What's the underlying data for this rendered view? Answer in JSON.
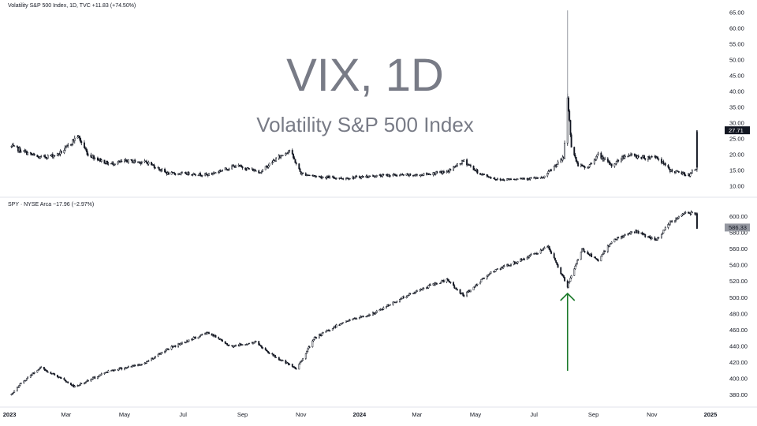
{
  "chart_data": [
    {
      "type": "line",
      "header": "Volatility S&P 500 Index, 1D, TVC  +11.83 (+74.50%)",
      "watermark_title": "VIX, 1D",
      "watermark_subtitle": "Volatility S&P 500 Index",
      "last_value": "27.71",
      "ylim": [
        8,
        66
      ],
      "y_ticks": [
        "65.00",
        "60.00",
        "55.00",
        "50.00",
        "45.00",
        "40.00",
        "35.00",
        "30.00",
        "25.00",
        "20.00",
        "15.00",
        "10.00"
      ],
      "y_tick_values": [
        65,
        60,
        55,
        50,
        45,
        40,
        35,
        30,
        25,
        20,
        15,
        10
      ],
      "x": [
        "2023-01-03",
        "2023-02-01",
        "2023-02-20",
        "2023-03-01",
        "2023-03-13",
        "2023-03-24",
        "2023-04-15",
        "2023-05-04",
        "2023-05-25",
        "2023-06-15",
        "2023-07-07",
        "2023-07-27",
        "2023-08-25",
        "2023-09-20",
        "2023-10-01",
        "2023-10-20",
        "2023-11-01",
        "2023-11-20",
        "2023-12-15",
        "2024-01-05",
        "2024-02-01",
        "2024-03-01",
        "2024-04-01",
        "2024-04-19",
        "2024-05-05",
        "2024-05-25",
        "2024-06-15",
        "2024-07-10",
        "2024-07-25",
        "2024-08-01",
        "2024-08-05",
        "2024-08-09",
        "2024-08-15",
        "2024-08-25",
        "2024-09-06",
        "2024-09-20",
        "2024-10-05",
        "2024-10-25",
        "2024-11-05",
        "2024-11-20",
        "2024-12-10",
        "2024-12-17",
        "2024-12-18"
      ],
      "values": [
        22.5,
        19,
        20,
        22,
        26,
        20,
        17,
        18,
        17.5,
        14,
        14,
        13.6,
        16.5,
        14.5,
        17.5,
        21.5,
        14,
        13,
        12.5,
        13,
        13.5,
        13.5,
        14.5,
        18,
        14,
        12,
        12.5,
        12.5,
        17,
        19,
        38,
        23,
        17,
        15.5,
        20,
        16.5,
        20,
        19,
        19.5,
        15,
        13.5,
        15.9,
        27.71
      ]
    },
    {
      "type": "line",
      "header": "SPY · NYSE Arca  −17.96 (−2.97%)",
      "last_value": "586.33",
      "ylim": [
        371,
        612
      ],
      "y_ticks": [
        "600.00",
        "580.00",
        "560.00",
        "540.00",
        "520.00",
        "500.00",
        "480.00",
        "460.00",
        "440.00",
        "420.00",
        "400.00",
        "380.00"
      ],
      "y_tick_values": [
        600,
        580,
        560,
        540,
        520,
        500,
        480,
        460,
        440,
        420,
        400,
        380
      ],
      "x": [
        "2023-01-03",
        "2023-01-12",
        "2023-02-02",
        "2023-02-20",
        "2023-03-10",
        "2023-04-15",
        "2023-05-20",
        "2023-06-15",
        "2023-07-27",
        "2023-08-20",
        "2023-09-15",
        "2023-10-01",
        "2023-10-27",
        "2023-11-15",
        "2023-12-15",
        "2024-01-15",
        "2024-02-15",
        "2024-03-15",
        "2024-04-01",
        "2024-04-19",
        "2024-05-15",
        "2024-06-15",
        "2024-07-16",
        "2024-08-05",
        "2024-08-20",
        "2024-09-06",
        "2024-09-20",
        "2024-10-15",
        "2024-11-05",
        "2024-11-20",
        "2024-12-06",
        "2024-12-17",
        "2024-12-18"
      ],
      "values": [
        380,
        393,
        414,
        403,
        390,
        410,
        418,
        437,
        457,
        440,
        445,
        430,
        412,
        450,
        470,
        480,
        500,
        515,
        522,
        502,
        530,
        545,
        562,
        514,
        560,
        545,
        570,
        582,
        570,
        592,
        605,
        604,
        586.33
      ],
      "annotation": "green up-arrow at 2024-08-05 pointing to the SPY low"
    }
  ],
  "x_axis": {
    "labels": [
      {
        "text": "2023",
        "date": "2023-01-01",
        "bold": true
      },
      {
        "text": "Mar",
        "date": "2023-03-01",
        "bold": false
      },
      {
        "text": "May",
        "date": "2023-05-01",
        "bold": false
      },
      {
        "text": "Jul",
        "date": "2023-07-01",
        "bold": false
      },
      {
        "text": "Sep",
        "date": "2023-09-01",
        "bold": false
      },
      {
        "text": "Nov",
        "date": "2023-11-01",
        "bold": false
      },
      {
        "text": "2024",
        "date": "2024-01-01",
        "bold": true
      },
      {
        "text": "Mar",
        "date": "2024-03-01",
        "bold": false
      },
      {
        "text": "May",
        "date": "2024-05-01",
        "bold": false
      },
      {
        "text": "Jul",
        "date": "2024-07-01",
        "bold": false
      },
      {
        "text": "Sep",
        "date": "2024-09-01",
        "bold": false
      },
      {
        "text": "Nov",
        "date": "2024-11-01",
        "bold": false
      },
      {
        "text": "2025",
        "date": "2025-01-01",
        "bold": true
      }
    ]
  },
  "colors": {
    "series": "#131722",
    "spike": "#9598a1",
    "arrow": "#1b7a2a",
    "vix_tag_bg": "#131722",
    "spy_tag_bg": "#9598a1",
    "watermark": "#787b86",
    "separator": "#e0e3eb"
  }
}
